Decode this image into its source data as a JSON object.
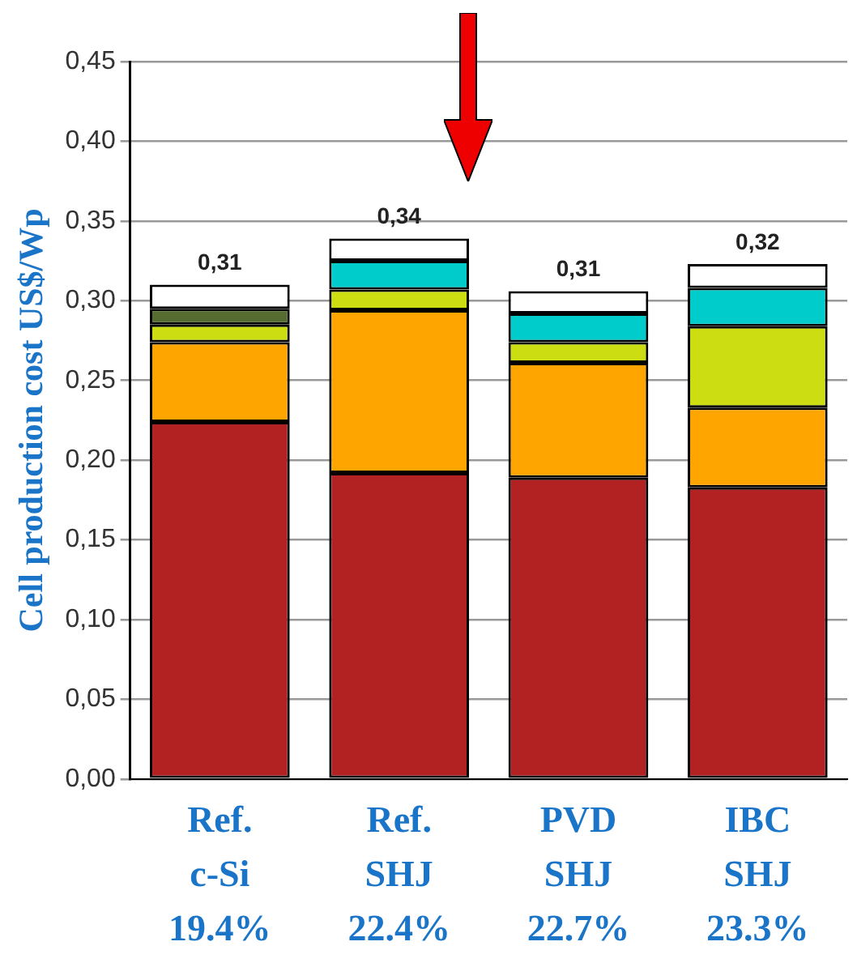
{
  "chart_data": {
    "type": "bar",
    "stacked": true,
    "ylabel": "Cell production cost US$/Wp",
    "categories": [
      "Ref.\nc-Si\n19.4%",
      "Ref.\nSHJ\n22.4%",
      "PVD\nSHJ\n22.7%",
      "IBC\nSHJ\n23.3%"
    ],
    "series": [
      {
        "color": "#b22222",
        "values": [
          0.224,
          0.192,
          0.189,
          0.183
        ]
      },
      {
        "color": "#ffa500",
        "values": [
          0.05,
          0.102,
          0.072,
          0.05
        ]
      },
      {
        "color": "#ccdd11",
        "values": [
          0.011,
          0.013,
          0.013,
          0.051
        ]
      },
      {
        "color": "#556b2f",
        "values": [
          0.01,
          0,
          0,
          0
        ]
      },
      {
        "color": "#00cccc",
        "values": [
          0,
          0.018,
          0.018,
          0.024
        ]
      },
      {
        "color": "#ffffff",
        "values": [
          0.015,
          0.014,
          0.014,
          0.015
        ]
      }
    ],
    "totals": [
      "0,31",
      "0,34",
      "0,31",
      "0,32"
    ],
    "ylim": [
      0,
      0.45
    ],
    "yticks": [
      {
        "value": 0,
        "label": "0,00"
      },
      {
        "value": 0.05,
        "label": "0,05"
      },
      {
        "value": 0.1,
        "label": "0,10"
      },
      {
        "value": 0.15,
        "label": "0,15"
      },
      {
        "value": 0.2,
        "label": "0,20"
      },
      {
        "value": 0.25,
        "label": "0,25"
      },
      {
        "value": 0.3,
        "label": "0,30"
      },
      {
        "value": 0.35,
        "label": "0,35"
      },
      {
        "value": 0.4,
        "label": "0,40"
      },
      {
        "value": 0.45,
        "label": "0,45"
      }
    ],
    "grid": "y",
    "legend": false
  }
}
